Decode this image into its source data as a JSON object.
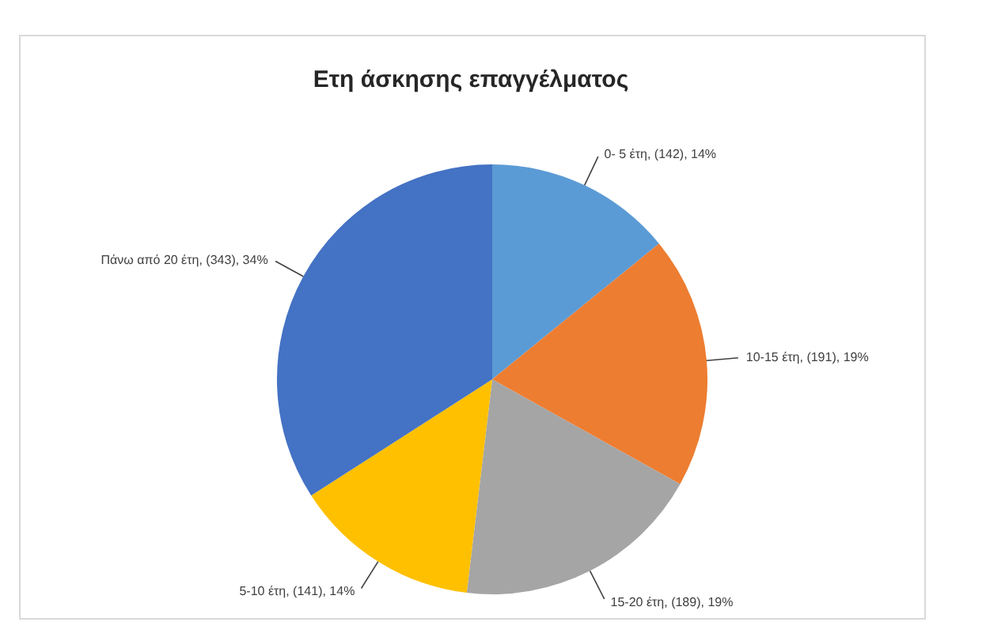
{
  "chart_data": {
    "type": "pie",
    "title": "Ετη άσκησης επαγγέλματος",
    "categories": [
      "0- 5 έτη",
      "10-15 έτη",
      "15-20 έτη",
      "5-10 έτη",
      "Πάνω από 20 έτη"
    ],
    "values": [
      142,
      191,
      189,
      141,
      343
    ],
    "value_labels": [
      "(142), 14%",
      "(191), 19%",
      "(189), 19%",
      "(141), 14%",
      "(343), 34%"
    ],
    "colors": [
      "#5b9bd5",
      "#ed7d31",
      "#a5a5a5",
      "#ffc000",
      "#4472c4"
    ],
    "legend": false
  }
}
